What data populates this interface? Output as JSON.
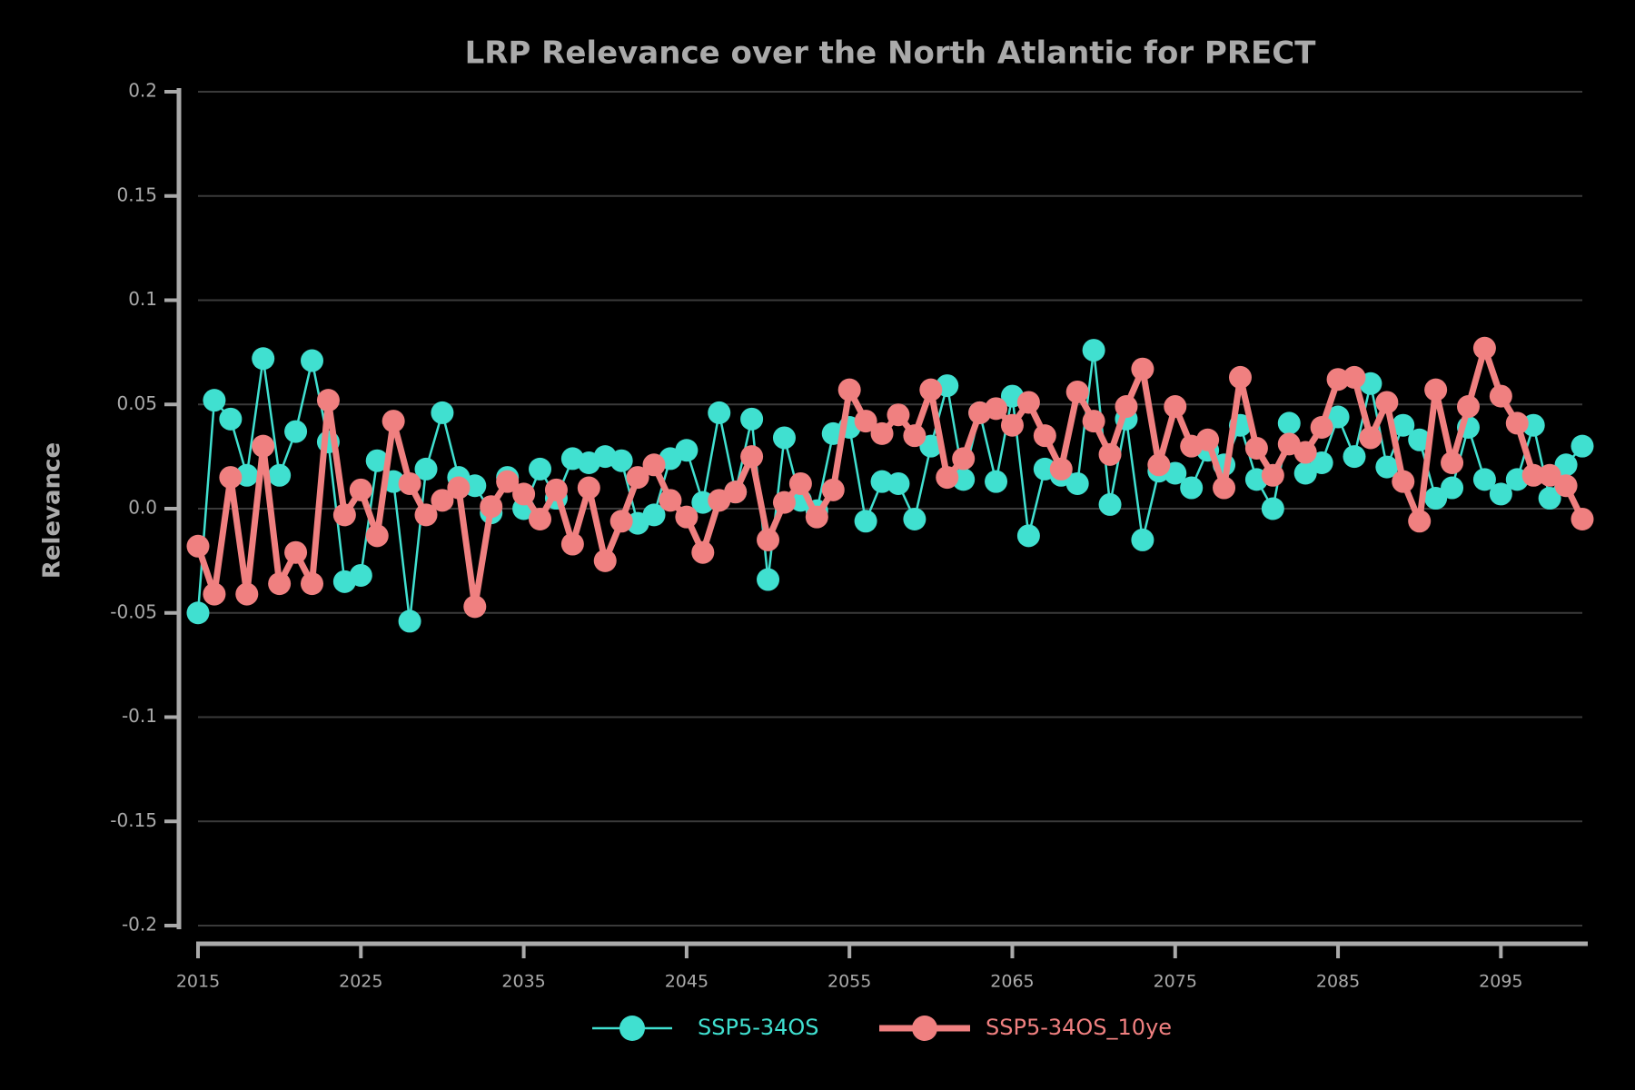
{
  "chart_data": {
    "type": "line",
    "title": "LRP Relevance over the North Atlantic for PRECT",
    "ylabel": "Relevance",
    "x": [
      2015,
      2016,
      2017,
      2018,
      2019,
      2020,
      2021,
      2022,
      2023,
      2024,
      2025,
      2026,
      2027,
      2028,
      2029,
      2030,
      2031,
      2032,
      2033,
      2034,
      2035,
      2036,
      2037,
      2038,
      2039,
      2040,
      2041,
      2042,
      2043,
      2044,
      2045,
      2046,
      2047,
      2048,
      2049,
      2050,
      2051,
      2052,
      2053,
      2054,
      2055,
      2056,
      2057,
      2058,
      2059,
      2060,
      2061,
      2062,
      2063,
      2064,
      2065,
      2066,
      2067,
      2068,
      2069,
      2070,
      2071,
      2072,
      2073,
      2074,
      2075,
      2076,
      2077,
      2078,
      2079,
      2080,
      2081,
      2082,
      2083,
      2084,
      2085,
      2086,
      2087,
      2088,
      2089,
      2090,
      2091,
      2092,
      2093,
      2094,
      2095,
      2096,
      2097,
      2098,
      2099,
      2100
    ],
    "series": [
      {
        "name": "SSP5-34OS",
        "color": "#40e0d0",
        "line_width": 2.5,
        "values": [
          -0.05,
          0.052,
          0.043,
          0.016,
          0.072,
          0.016,
          0.037,
          0.071,
          0.032,
          -0.035,
          -0.032,
          0.023,
          0.013,
          -0.054,
          0.019,
          0.046,
          0.015,
          0.011,
          -0.002,
          0.015,
          0.0,
          0.019,
          0.005,
          0.024,
          0.022,
          0.025,
          0.023,
          -0.007,
          -0.003,
          0.024,
          0.028,
          0.003,
          0.046,
          0.008,
          0.043,
          -0.034,
          0.034,
          0.004,
          -0.001,
          0.036,
          0.039,
          -0.006,
          0.013,
          0.012,
          -0.005,
          0.03,
          0.059,
          0.014,
          0.046,
          0.013,
          0.054,
          -0.013,
          0.019,
          0.016,
          0.012,
          0.076,
          0.002,
          0.043,
          -0.015,
          0.018,
          0.017,
          0.01,
          0.028,
          0.021,
          0.04,
          0.014,
          0.0,
          0.041,
          0.017,
          0.022,
          0.044,
          0.025,
          0.06,
          0.02,
          0.04,
          0.033,
          0.005,
          0.01,
          0.039,
          0.014,
          0.007,
          0.014,
          0.04,
          0.005,
          0.021,
          0.03
        ]
      },
      {
        "name": "SSP5-34OS_10ye",
        "color": "#f08080",
        "line_width": 7,
        "values": [
          -0.018,
          -0.041,
          0.015,
          -0.041,
          0.03,
          -0.036,
          -0.021,
          -0.036,
          0.052,
          -0.003,
          0.009,
          -0.013,
          0.042,
          0.012,
          -0.003,
          0.004,
          0.01,
          -0.047,
          0.001,
          0.013,
          0.007,
          -0.005,
          0.009,
          -0.017,
          0.01,
          -0.025,
          -0.006,
          0.015,
          0.021,
          0.004,
          -0.004,
          -0.021,
          0.004,
          0.008,
          0.025,
          -0.015,
          0.003,
          0.012,
          -0.004,
          0.009,
          0.057,
          0.042,
          0.036,
          0.045,
          0.035,
          0.057,
          0.015,
          0.024,
          0.046,
          0.048,
          0.04,
          0.051,
          0.035,
          0.019,
          0.056,
          0.042,
          0.026,
          0.049,
          0.067,
          0.021,
          0.049,
          0.03,
          0.033,
          0.01,
          0.063,
          0.029,
          0.016,
          0.031,
          0.027,
          0.039,
          0.062,
          0.063,
          0.034,
          0.051,
          0.013,
          -0.006,
          0.057,
          0.022,
          0.049,
          0.077,
          0.054,
          0.041,
          0.016,
          0.016,
          0.011,
          -0.005
        ]
      }
    ],
    "xlim": [
      2015,
      2100
    ],
    "xticks": [
      2015,
      2025,
      2035,
      2045,
      2055,
      2065,
      2075,
      2085,
      2095
    ],
    "ylim": [
      -0.2,
      0.2
    ],
    "yticks": [
      -0.2,
      -0.15,
      -0.1,
      -0.05,
      {
        "value": 0,
        "label": "0.0"
      },
      0.05,
      0.1,
      0.15,
      0.2
    ],
    "grid": true
  }
}
